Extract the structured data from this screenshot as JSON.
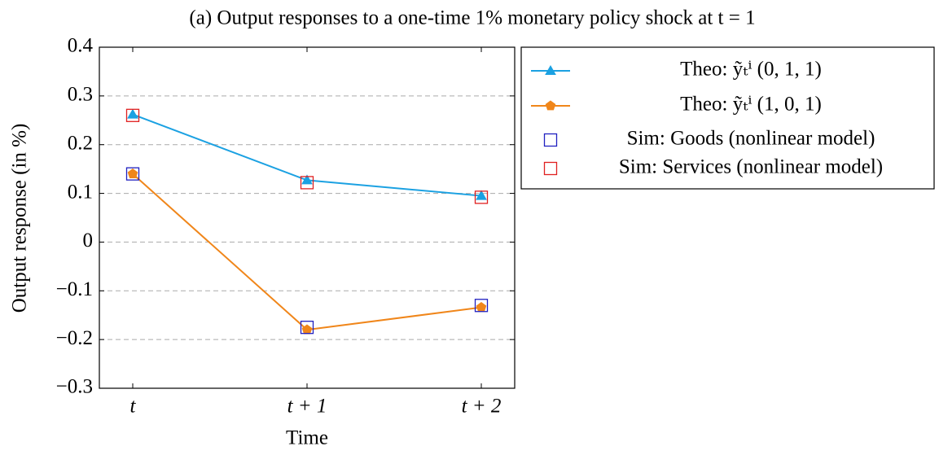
{
  "chart_data": {
    "type": "line",
    "title": "(a) Output responses to a one-time 1% monetary policy shock at t = 1",
    "xlabel": "Time",
    "ylabel": "Output response (in %)",
    "categories": [
      "t",
      "t + 1",
      "t + 2"
    ],
    "ylim": [
      -0.3,
      0.4
    ],
    "yticks": [
      {
        "value": -0.3,
        "label": "−0.3"
      },
      {
        "value": -0.2,
        "label": "−0.2"
      },
      {
        "value": -0.1,
        "label": "−0.1"
      },
      0,
      0.1,
      0.2,
      0.3,
      0.4
    ],
    "grid": true,
    "series": [
      {
        "name": "Theo: ỹₜⁱ (0, 1, 1)",
        "color": "#1ba1e2",
        "marker": "triangle",
        "line": true,
        "values": [
          0.262,
          0.127,
          0.095
        ]
      },
      {
        "name": "Theo: ỹₜⁱ (1, 0, 1)",
        "color": "#f0861a",
        "marker": "pentagon",
        "line": true,
        "values": [
          0.14,
          -0.18,
          -0.134
        ]
      },
      {
        "name": "Sim: Goods (nonlinear model)",
        "color": "#2020c0",
        "marker": "square",
        "line": false,
        "values": [
          0.14,
          -0.175,
          -0.13
        ]
      },
      {
        "name": "Sim: Services (nonlinear model)",
        "color": "#e02020",
        "marker": "square",
        "line": false,
        "values": [
          0.26,
          0.122,
          0.092
        ]
      }
    ]
  }
}
